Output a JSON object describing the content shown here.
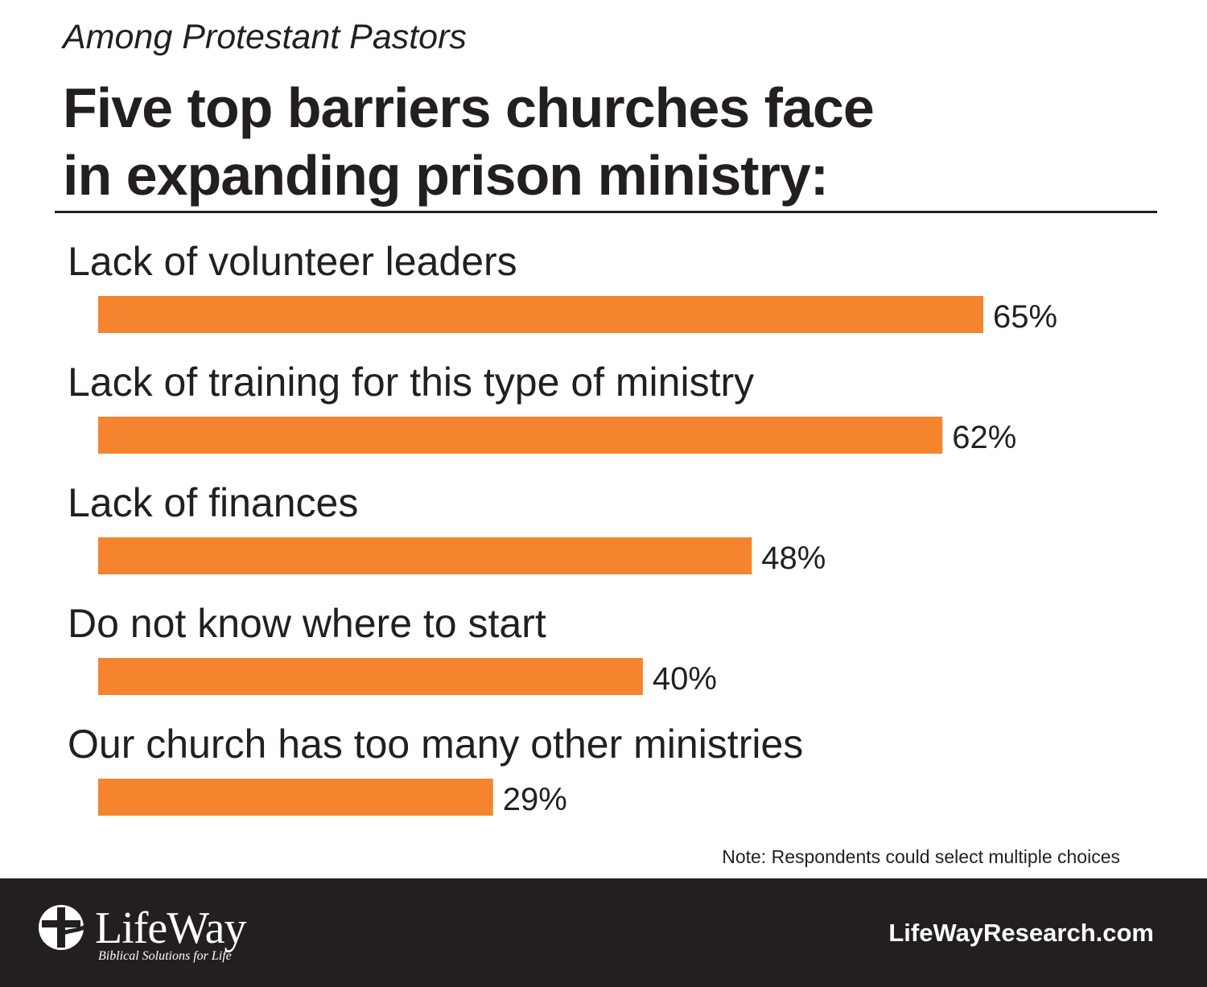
{
  "header": {
    "subtitle": "Among Protestant Pastors",
    "title_line1": "Five top barriers churches face",
    "title_line2": "in expanding prison ministry:"
  },
  "chart_data": {
    "type": "bar",
    "orientation": "horizontal",
    "title": "Five top barriers churches face in expanding prison ministry:",
    "subtitle": "Among Protestant Pastors",
    "categories": [
      "Lack of volunteer leaders",
      "Lack of training for this type of ministry",
      "Lack of finances",
      "Do not know where to start",
      "Our church has too many other ministries"
    ],
    "values": [
      65,
      62,
      48,
      40,
      29
    ],
    "value_labels": [
      "65%",
      "62%",
      "48%",
      "40%",
      "29%"
    ],
    "unit": "%",
    "xlim": [
      0,
      100
    ],
    "grid": false,
    "legend": "none",
    "bar_color": "#f5842f"
  },
  "note": "Note: Respondents could select multiple choices",
  "footer": {
    "logo_text": "LifeWay",
    "logo_tagline": "Biblical Solutions for Life",
    "logo_icon": "cross-circle-icon",
    "website": "LifeWayResearch.com",
    "background_color": "#231f20"
  }
}
